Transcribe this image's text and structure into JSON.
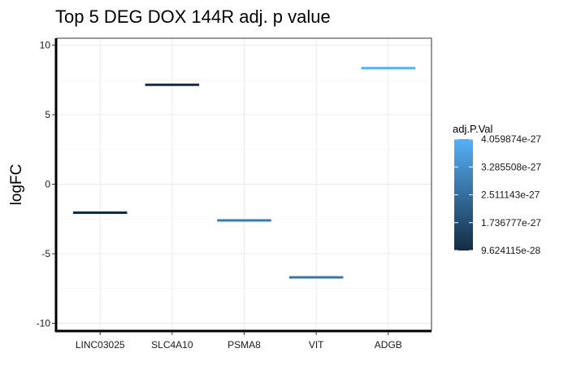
{
  "chart_data": {
    "type": "errorbar",
    "title": "Top 5 DEG DOX 144R adj. p value",
    "xlabel": "",
    "ylabel": "logFC",
    "ylim": [
      -10.5,
      10.5
    ],
    "yticks": [
      -10,
      -5,
      0,
      5,
      10
    ],
    "yticklabels": [
      "-10",
      "-5",
      "0",
      "5",
      "10"
    ],
    "categories": [
      "LINC03025",
      "SLC4A10",
      "PSMA8",
      "VIT",
      "ADGB"
    ],
    "values": [
      -2.05,
      7.15,
      -2.6,
      -6.7,
      8.35
    ],
    "color_values": [
      9.7e-28,
      9.8e-28,
      2.85e-27,
      2.7e-27,
      4.06e-27
    ],
    "grid": true,
    "legend": {
      "title": "adj.P.Val",
      "position": "right",
      "min": 9.624115e-28,
      "max": 4.059874e-27,
      "color_low": "#132b43",
      "color_high": "#56b1f7",
      "ticks": [
        4.059874e-27,
        3.285508e-27,
        2.511143e-27,
        1.736777e-27,
        9.624115e-28
      ],
      "tick_labels": [
        "4.059874e-27",
        "3.285508e-27",
        "2.511143e-27",
        "1.736777e-27",
        "9.624115e-28"
      ]
    }
  }
}
